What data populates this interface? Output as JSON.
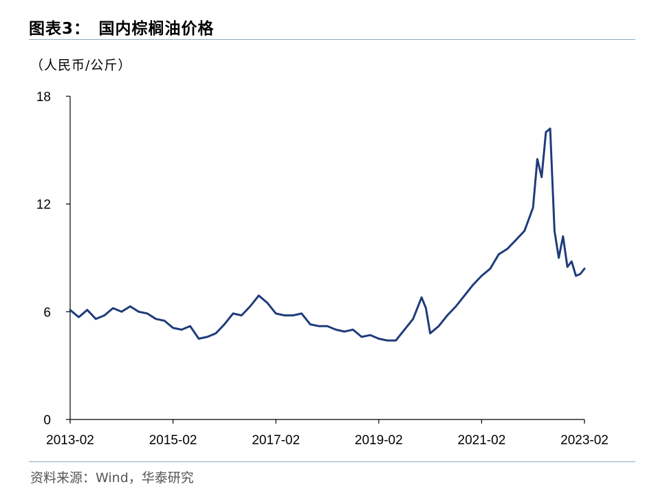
{
  "header": {
    "title": "图表3：　国内棕榈油价格",
    "unit": "（人民币/公斤）"
  },
  "footer": {
    "source": "资料来源：Wind，华泰研究"
  },
  "colors": {
    "series": "#1f3c7a",
    "rule": "#8ea9c1",
    "axis": "#000000"
  },
  "chart_data": {
    "type": "line",
    "title": "国内棕榈油价格",
    "ylabel": "（人民币/公斤）",
    "xlabel": "",
    "ylim": [
      0,
      18
    ],
    "xlim": [
      "2013-02",
      "2023-02"
    ],
    "x_ticks": [
      "2013-02",
      "2015-02",
      "2017-02",
      "2019-02",
      "2021-02",
      "2023-02"
    ],
    "y_ticks": [
      "0",
      "6",
      "12",
      "18"
    ],
    "y_tick_values": [
      0,
      6,
      12,
      18
    ],
    "grid": false,
    "legend": "none",
    "series": [
      {
        "x": [
          "2013-02",
          "2013-04",
          "2013-06",
          "2013-08",
          "2013-10",
          "2013-12",
          "2014-02",
          "2014-04",
          "2014-06",
          "2014-08",
          "2014-10",
          "2014-12",
          "2015-02",
          "2015-04",
          "2015-06",
          "2015-08",
          "2015-10",
          "2015-12",
          "2016-02",
          "2016-04",
          "2016-06",
          "2016-08",
          "2016-10",
          "2016-12",
          "2017-02",
          "2017-04",
          "2017-06",
          "2017-08",
          "2017-10",
          "2017-12",
          "2018-02",
          "2018-04",
          "2018-06",
          "2018-08",
          "2018-10",
          "2018-12",
          "2019-02",
          "2019-04",
          "2019-06",
          "2019-08",
          "2019-10",
          "2019-12",
          "2020-01",
          "2020-02",
          "2020-04",
          "2020-06",
          "2020-08",
          "2020-10",
          "2020-12",
          "2021-02",
          "2021-04",
          "2021-06",
          "2021-08",
          "2021-10",
          "2021-12",
          "2022-02",
          "2022-03",
          "2022-04",
          "2022-05",
          "2022-06",
          "2022-07",
          "2022-08",
          "2022-09",
          "2022-10",
          "2022-11",
          "2022-12",
          "2023-01",
          "2023-02"
        ],
        "values": [
          6.1,
          5.7,
          6.1,
          5.6,
          5.8,
          6.2,
          6.0,
          6.3,
          6.0,
          5.9,
          5.6,
          5.5,
          5.1,
          5.0,
          5.2,
          4.5,
          4.6,
          4.8,
          5.3,
          5.9,
          5.8,
          6.3,
          6.9,
          6.5,
          5.9,
          5.8,
          5.8,
          5.9,
          5.3,
          5.2,
          5.2,
          5.0,
          4.9,
          5.0,
          4.6,
          4.7,
          4.5,
          4.4,
          4.4,
          5.0,
          5.6,
          6.8,
          6.2,
          4.8,
          5.2,
          5.8,
          6.3,
          6.9,
          7.5,
          8.0,
          8.4,
          9.2,
          9.5,
          10.0,
          10.5,
          11.8,
          14.5,
          13.5,
          16.0,
          16.2,
          10.5,
          9.0,
          10.2,
          8.5,
          8.8,
          8.0,
          8.1,
          8.4
        ]
      }
    ]
  }
}
